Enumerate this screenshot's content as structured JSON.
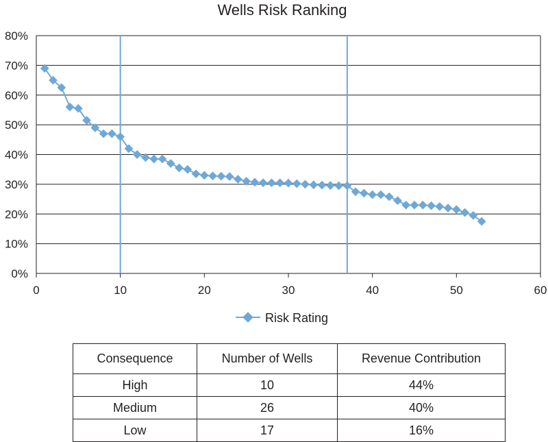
{
  "chart_data": {
    "type": "line",
    "title": "Wells Risk Ranking",
    "xlabel": "",
    "ylabel": "",
    "xlim": [
      0,
      60
    ],
    "ylim": [
      0,
      0.8
    ],
    "x_ticks": [
      "0",
      "10",
      "20",
      "30",
      "40",
      "50",
      "60"
    ],
    "y_ticks": [
      "0%",
      "10%",
      "20%",
      "30%",
      "40%",
      "50%",
      "60%",
      "70%",
      "80%"
    ],
    "grid": "horizontal",
    "legend_position": "bottom",
    "vertical_markers": [
      10,
      37
    ],
    "series": [
      {
        "name": "Risk Rating",
        "color": "#6fa8d6",
        "x": [
          1,
          2,
          3,
          4,
          5,
          6,
          7,
          8,
          9,
          10,
          11,
          12,
          13,
          14,
          15,
          16,
          17,
          18,
          19,
          20,
          21,
          22,
          23,
          24,
          25,
          26,
          27,
          28,
          29,
          30,
          31,
          32,
          33,
          34,
          35,
          36,
          37,
          38,
          39,
          40,
          41,
          42,
          43,
          44,
          45,
          46,
          47,
          48,
          49,
          50,
          51,
          52,
          53
        ],
        "values": [
          0.69,
          0.65,
          0.625,
          0.56,
          0.555,
          0.515,
          0.49,
          0.47,
          0.47,
          0.46,
          0.42,
          0.4,
          0.39,
          0.385,
          0.385,
          0.37,
          0.355,
          0.35,
          0.335,
          0.33,
          0.328,
          0.327,
          0.326,
          0.317,
          0.31,
          0.307,
          0.305,
          0.305,
          0.305,
          0.304,
          0.302,
          0.3,
          0.298,
          0.297,
          0.296,
          0.295,
          0.295,
          0.275,
          0.27,
          0.265,
          0.265,
          0.258,
          0.245,
          0.23,
          0.23,
          0.23,
          0.228,
          0.225,
          0.22,
          0.215,
          0.205,
          0.195,
          0.175
        ]
      }
    ]
  },
  "table": {
    "headers": [
      "Consequence",
      "Number of Wells",
      "Revenue Contribution"
    ],
    "rows": [
      [
        "High",
        "10",
        "44%"
      ],
      [
        "Medium",
        "26",
        "40%"
      ],
      [
        "Low",
        "17",
        "16%"
      ]
    ]
  }
}
